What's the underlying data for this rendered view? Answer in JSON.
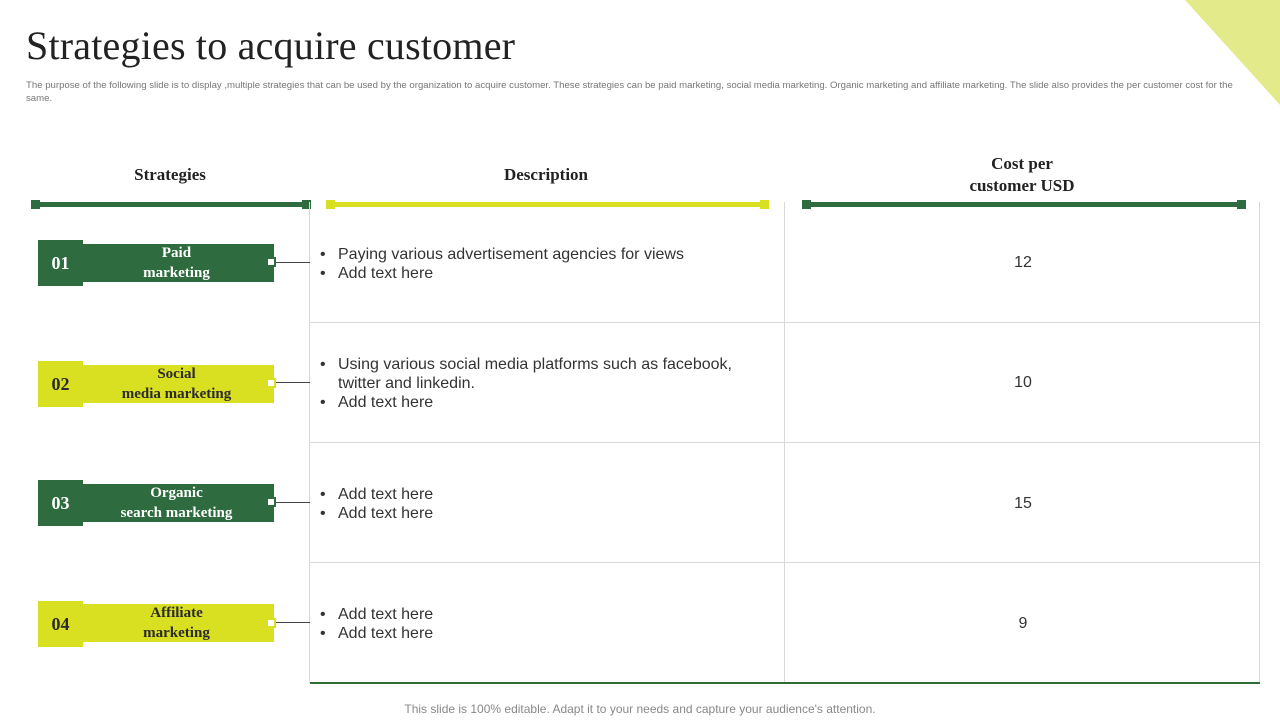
{
  "slide": {
    "title": "Strategies to acquire customer",
    "subtitle": "The purpose of the following slide is to display ,multiple strategies that can be used by the organization to acquire customer. These strategies can be paid marketing, social media marketing. Organic marketing and affiliate marketing. The slide also provides the per customer cost for the same.",
    "footer": "This slide is 100% editable. Adapt it to your needs and capture your audience's attention."
  },
  "colors": {
    "dark_green": "#2e6b3f",
    "lime": "#d9e021",
    "grid": "#d9d9d9"
  },
  "table": {
    "headers": {
      "strategies": "Strategies",
      "description": "Description",
      "cost": "Cost per\ncustomer USD"
    },
    "rows": [
      {
        "number": "01",
        "strategy": "Paid\nmarketing",
        "style": "dark",
        "bullets": [
          "Paying various advertisement agencies for views",
          "Add text here"
        ],
        "cost": "12"
      },
      {
        "number": "02",
        "strategy": "Social\nmedia marketing",
        "style": "lime",
        "bullets": [
          "Using various social media platforms  such as facebook, twitter and linkedin.",
          "Add text here"
        ],
        "cost": "10"
      },
      {
        "number": "03",
        "strategy": "Organic\nsearch marketing",
        "style": "dark",
        "bullets": [
          "Add text here",
          "Add text here"
        ],
        "cost": "15"
      },
      {
        "number": "04",
        "strategy": "Affiliate\nmarketing",
        "style": "lime",
        "bullets": [
          "Add text here",
          "Add text here"
        ],
        "cost": "9"
      }
    ]
  }
}
